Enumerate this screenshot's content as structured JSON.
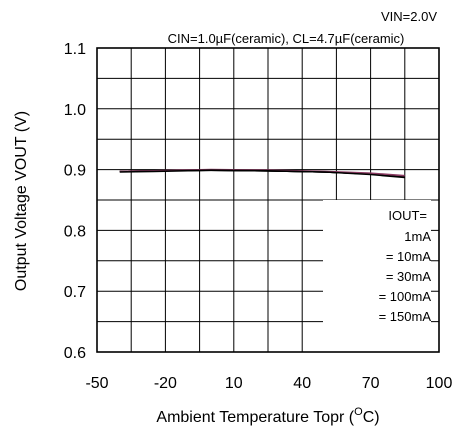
{
  "chart_data": {
    "type": "line",
    "condition_top": "VIN=2.0V",
    "condition_sub": "CIN=1.0µF(ceramic), CL=4.7µF(ceramic)",
    "xlabel": "Ambient Temperature Topr (",
    "xlabel_unit_sup": "O",
    "xlabel_unit_tail": "C)",
    "ylabel": "Output Voltage VOUT (V)",
    "xlim": [
      -50,
      100
    ],
    "ylim": [
      0.6,
      1.1
    ],
    "x_ticks": [
      "-50",
      "-20",
      "10",
      "40",
      "70",
      "100"
    ],
    "y_ticks": [
      "0.6",
      "0.7",
      "0.8",
      "0.9",
      "1.0",
      "1.1"
    ],
    "legend_title": "IOUT=",
    "legend": [
      "1mA",
      "=   10mA",
      "=   30mA",
      "= 100mA",
      "= 150mA"
    ],
    "series": [
      {
        "name": "1mA",
        "color": "#000000",
        "x": [
          -40,
          -25,
          0,
          25,
          50,
          70,
          85
        ],
        "y": [
          0.897,
          0.898,
          0.899,
          0.898,
          0.896,
          0.893,
          0.889
        ]
      },
      {
        "name": "10mA",
        "color": "#000000",
        "x": [
          -40,
          -25,
          0,
          25,
          50,
          70,
          85
        ],
        "y": [
          0.897,
          0.898,
          0.899,
          0.898,
          0.896,
          0.893,
          0.889
        ]
      },
      {
        "name": "30mA",
        "color": "#000000",
        "x": [
          -40,
          -25,
          0,
          25,
          50,
          70,
          85
        ],
        "y": [
          0.897,
          0.898,
          0.899,
          0.898,
          0.896,
          0.893,
          0.888
        ]
      },
      {
        "name": "100mA",
        "color": "#8b3a62",
        "x": [
          -40,
          -25,
          0,
          25,
          50,
          70,
          85
        ],
        "y": [
          0.897,
          0.898,
          0.9,
          0.899,
          0.897,
          0.894,
          0.89
        ]
      },
      {
        "name": "150mA",
        "color": "#000000",
        "x": [
          -40,
          -25,
          0,
          25,
          50,
          70,
          85
        ],
        "y": [
          0.896,
          0.897,
          0.899,
          0.898,
          0.896,
          0.892,
          0.887
        ]
      }
    ]
  }
}
